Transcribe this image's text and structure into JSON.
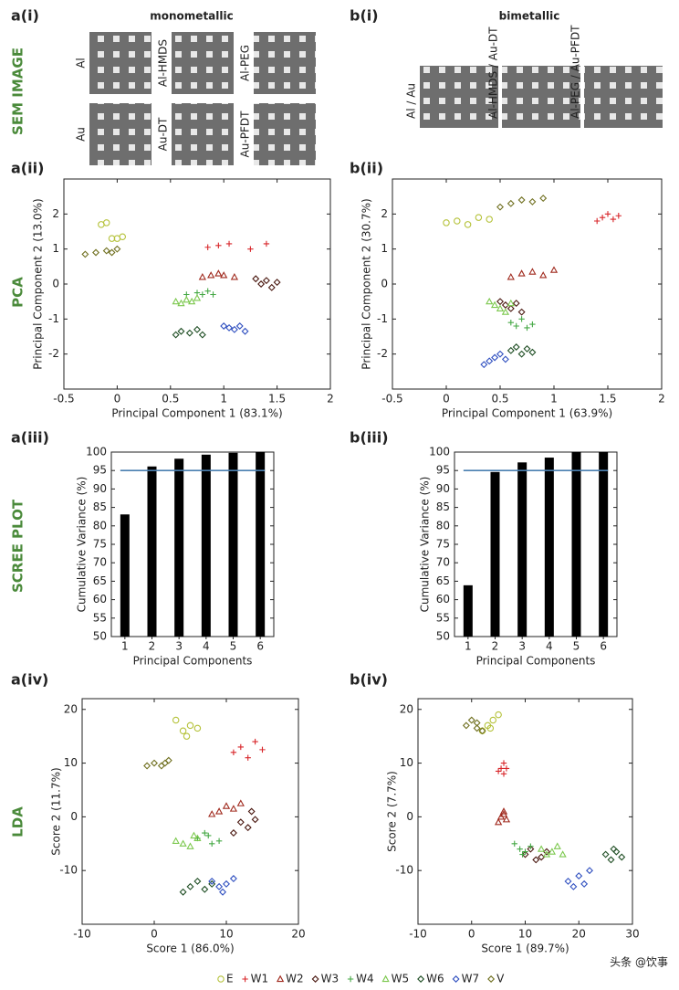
{
  "row_labels": [
    "SEM IMAGE",
    "PCA",
    "SCREE PLOT",
    "LDA"
  ],
  "sem": {
    "a": {
      "panel": "a(i)",
      "title": "monometallic",
      "title_color": "#999999",
      "labels": [
        "Al",
        "Al-HMDS",
        "Al-PEG",
        "Au",
        "Au-DT",
        "Au-PFDT"
      ]
    },
    "b": {
      "panel": "b(i)",
      "title": "bimetallic",
      "title_color": "#6a3a9a",
      "labels": [
        "Al / Au",
        "Al-HMDS / Au-DT",
        "Al-PEG / Au-PFDT"
      ]
    }
  },
  "legend": {
    "items": [
      {
        "name": "E",
        "color": "#b5c23a",
        "marker": "circle"
      },
      {
        "name": "W1",
        "color": "#d8262a",
        "marker": "plus"
      },
      {
        "name": "W2",
        "color": "#a02a1e",
        "marker": "triangle"
      },
      {
        "name": "W3",
        "color": "#4a1810",
        "marker": "diamond"
      },
      {
        "name": "W4",
        "color": "#45a845",
        "marker": "plus"
      },
      {
        "name": "W5",
        "color": "#7cc84e",
        "marker": "triangle"
      },
      {
        "name": "W6",
        "color": "#1f4e24",
        "marker": "diamond"
      },
      {
        "name": "W7",
        "color": "#3050c0",
        "marker": "diamond"
      },
      {
        "name": "V",
        "color": "#707020",
        "marker": "diamond"
      }
    ]
  },
  "watermark": "头条 @饮事",
  "chart_data": [
    {
      "type": "scatter",
      "panel": "a(ii)",
      "x_label": "Principal Component 1 (83.1%)",
      "y_label": "Principal Component 2 (13.0%)",
      "xlim": [
        -0.5,
        2
      ],
      "ylim": [
        -3,
        3
      ],
      "xticks": [
        -0.5,
        0,
        0.5,
        1,
        1.5,
        2
      ],
      "yticks": [
        -2,
        -1,
        0,
        1,
        2
      ],
      "series": [
        {
          "x": [
            -0.15,
            -0.1,
            -0.05,
            0.0,
            0.05
          ],
          "y": [
            1.7,
            1.75,
            1.3,
            1.3,
            1.35
          ]
        },
        {
          "x": [
            0.85,
            0.95,
            1.05,
            1.25,
            1.4
          ],
          "y": [
            1.05,
            1.1,
            1.15,
            1.0,
            1.15
          ]
        },
        {
          "x": [
            0.8,
            0.88,
            0.95,
            1.0,
            1.1
          ],
          "y": [
            0.2,
            0.25,
            0.3,
            0.25,
            0.2
          ]
        },
        {
          "x": [
            1.3,
            1.35,
            1.4,
            1.45,
            1.5
          ],
          "y": [
            0.15,
            0.0,
            0.1,
            -0.1,
            0.05
          ]
        },
        {
          "x": [
            0.65,
            0.75,
            0.8,
            0.85,
            0.9
          ],
          "y": [
            -0.3,
            -0.25,
            -0.3,
            -0.2,
            -0.3
          ]
        },
        {
          "x": [
            0.55,
            0.6,
            0.65,
            0.7,
            0.75
          ],
          "y": [
            -0.5,
            -0.55,
            -0.45,
            -0.5,
            -0.4
          ]
        },
        {
          "x": [
            0.55,
            0.6,
            0.68,
            0.75,
            0.8
          ],
          "y": [
            -1.45,
            -1.35,
            -1.4,
            -1.3,
            -1.45
          ]
        },
        {
          "x": [
            1.0,
            1.05,
            1.1,
            1.15,
            1.2
          ],
          "y": [
            -1.2,
            -1.25,
            -1.3,
            -1.2,
            -1.35
          ]
        },
        {
          "x": [
            -0.3,
            -0.2,
            -0.1,
            -0.05,
            0.0
          ],
          "y": [
            0.85,
            0.9,
            0.95,
            0.9,
            1.0
          ]
        }
      ]
    },
    {
      "type": "scatter",
      "panel": "b(ii)",
      "x_label": "Principal Component 1 (63.9%)",
      "y_label": "Principal Component 2 (30.7%)",
      "xlim": [
        -0.5,
        2
      ],
      "ylim": [
        -3,
        3
      ],
      "xticks": [
        -0.5,
        0,
        0.5,
        1,
        1.5,
        2
      ],
      "yticks": [
        -2,
        -1,
        0,
        1,
        2
      ],
      "series": [
        {
          "x": [
            0.0,
            0.1,
            0.2,
            0.3,
            0.4
          ],
          "y": [
            1.75,
            1.8,
            1.7,
            1.9,
            1.85
          ]
        },
        {
          "x": [
            1.4,
            1.45,
            1.5,
            1.55,
            1.6
          ],
          "y": [
            1.8,
            1.9,
            2.0,
            1.85,
            1.95
          ]
        },
        {
          "x": [
            0.6,
            0.7,
            0.8,
            0.9,
            1.0
          ],
          "y": [
            0.2,
            0.3,
            0.35,
            0.25,
            0.4
          ]
        },
        {
          "x": [
            0.5,
            0.55,
            0.6,
            0.65,
            0.7
          ],
          "y": [
            -0.5,
            -0.6,
            -0.7,
            -0.55,
            -0.8
          ]
        },
        {
          "x": [
            0.6,
            0.65,
            0.7,
            0.75,
            0.8
          ],
          "y": [
            -1.1,
            -1.2,
            -1.0,
            -1.25,
            -1.15
          ]
        },
        {
          "x": [
            0.4,
            0.45,
            0.5,
            0.55,
            0.6
          ],
          "y": [
            -0.5,
            -0.6,
            -0.7,
            -0.8,
            -0.55
          ]
        },
        {
          "x": [
            0.6,
            0.65,
            0.7,
            0.75,
            0.8
          ],
          "y": [
            -1.9,
            -1.8,
            -2.0,
            -1.85,
            -1.95
          ]
        },
        {
          "x": [
            0.35,
            0.4,
            0.45,
            0.5,
            0.55
          ],
          "y": [
            -2.3,
            -2.2,
            -2.1,
            -2.0,
            -2.15
          ]
        },
        {
          "x": [
            0.5,
            0.6,
            0.7,
            0.8,
            0.9
          ],
          "y": [
            2.2,
            2.3,
            2.4,
            2.35,
            2.45
          ]
        }
      ]
    },
    {
      "type": "bar",
      "panel": "a(iii)",
      "x_label": "Principal Components",
      "y_label": "Cumulative Variance (%)",
      "categories": [
        "1",
        "2",
        "3",
        "4",
        "5",
        "6"
      ],
      "values": [
        83.1,
        96.1,
        98.2,
        99.3,
        99.8,
        100
      ],
      "color": "#000000",
      "threshold": 95,
      "threshold_color": "#4a7fb0",
      "ylim": [
        50,
        100
      ],
      "yticks": [
        50,
        55,
        60,
        65,
        70,
        75,
        80,
        85,
        90,
        95,
        100
      ]
    },
    {
      "type": "bar",
      "panel": "b(iii)",
      "x_label": "Principal Components",
      "y_label": "Cumulative Variance (%)",
      "categories": [
        "1",
        "2",
        "3",
        "4",
        "5",
        "6"
      ],
      "values": [
        63.9,
        94.6,
        97.2,
        98.5,
        100,
        100
      ],
      "color": "#000000",
      "threshold": 95,
      "threshold_color": "#4a7fb0",
      "ylim": [
        50,
        100
      ],
      "yticks": [
        50,
        55,
        60,
        65,
        70,
        75,
        80,
        85,
        90,
        95,
        100
      ]
    },
    {
      "type": "scatter",
      "panel": "a(iv)",
      "x_label": "Score 1 (86.0%)",
      "y_label": "Score 2 (11.7%)",
      "xlim": [
        -10,
        20
      ],
      "ylim": [
        -20,
        22
      ],
      "xticks": [
        -10,
        0,
        10,
        20
      ],
      "yticks": [
        -10,
        0,
        10,
        20
      ],
      "series": [
        {
          "x": [
            3,
            4,
            5,
            6,
            4.5
          ],
          "y": [
            18,
            16,
            17,
            16.5,
            15
          ]
        },
        {
          "x": [
            11,
            12,
            13,
            14,
            15
          ],
          "y": [
            12,
            13,
            11,
            14,
            12.5
          ]
        },
        {
          "x": [
            8,
            9,
            10,
            11,
            12
          ],
          "y": [
            0.5,
            1,
            2,
            1.5,
            2.5
          ]
        },
        {
          "x": [
            11,
            12,
            13,
            14,
            13.5
          ],
          "y": [
            -3,
            -1,
            -2,
            -0.5,
            1
          ]
        },
        {
          "x": [
            6,
            7,
            8,
            9,
            7.5
          ],
          "y": [
            -4,
            -3,
            -5,
            -4.5,
            -3.5
          ]
        },
        {
          "x": [
            3,
            4,
            5,
            6,
            5.5
          ],
          "y": [
            -4.5,
            -5,
            -5.5,
            -4,
            -3.5
          ]
        },
        {
          "x": [
            4,
            5,
            6,
            7,
            8
          ],
          "y": [
            -14,
            -13,
            -12,
            -13.5,
            -12.5
          ]
        },
        {
          "x": [
            8,
            9,
            10,
            11,
            9.5
          ],
          "y": [
            -12,
            -13,
            -12.5,
            -11.5,
            -14
          ]
        },
        {
          "x": [
            -1,
            0,
            1,
            2,
            1.5
          ],
          "y": [
            9.5,
            10,
            9.5,
            10.5,
            10
          ]
        }
      ]
    },
    {
      "type": "scatter",
      "panel": "b(iv)",
      "x_label": "Score 1 (89.7%)",
      "y_label": "Score 2 (7.7%)",
      "xlim": [
        -10,
        30
      ],
      "ylim": [
        -20,
        22
      ],
      "xticks": [
        -10,
        0,
        10,
        20,
        30
      ],
      "yticks": [
        -10,
        0,
        10,
        20
      ],
      "series": [
        {
          "x": [
            2,
            3,
            4,
            5,
            3.5
          ],
          "y": [
            16,
            17,
            18,
            19,
            16.5
          ]
        },
        {
          "x": [
            5,
            5.5,
            6,
            6.5,
            6
          ],
          "y": [
            8.5,
            9,
            10,
            9,
            8
          ]
        },
        {
          "x": [
            5,
            5.5,
            6,
            6.5,
            6
          ],
          "y": [
            -1,
            0,
            1,
            -0.5,
            0.5
          ]
        },
        {
          "x": [
            10,
            11,
            12,
            13,
            14
          ],
          "y": [
            -7,
            -6,
            -8,
            -7.5,
            -6.5
          ]
        },
        {
          "x": [
            8,
            9,
            10,
            11,
            9.5
          ],
          "y": [
            -5,
            -6,
            -6.5,
            -5.5,
            -7
          ]
        },
        {
          "x": [
            13,
            14,
            15,
            16,
            17
          ],
          "y": [
            -6,
            -7,
            -6.5,
            -5.5,
            -7
          ]
        },
        {
          "x": [
            25,
            26,
            27,
            28,
            26.5
          ],
          "y": [
            -7,
            -8,
            -6.5,
            -7.5,
            -6
          ]
        },
        {
          "x": [
            18,
            19,
            20,
            21,
            22
          ],
          "y": [
            -12,
            -13,
            -11,
            -12.5,
            -10
          ]
        },
        {
          "x": [
            -1,
            0,
            1,
            2,
            1
          ],
          "y": [
            17,
            18,
            17.5,
            16,
            16.5
          ]
        }
      ]
    }
  ]
}
